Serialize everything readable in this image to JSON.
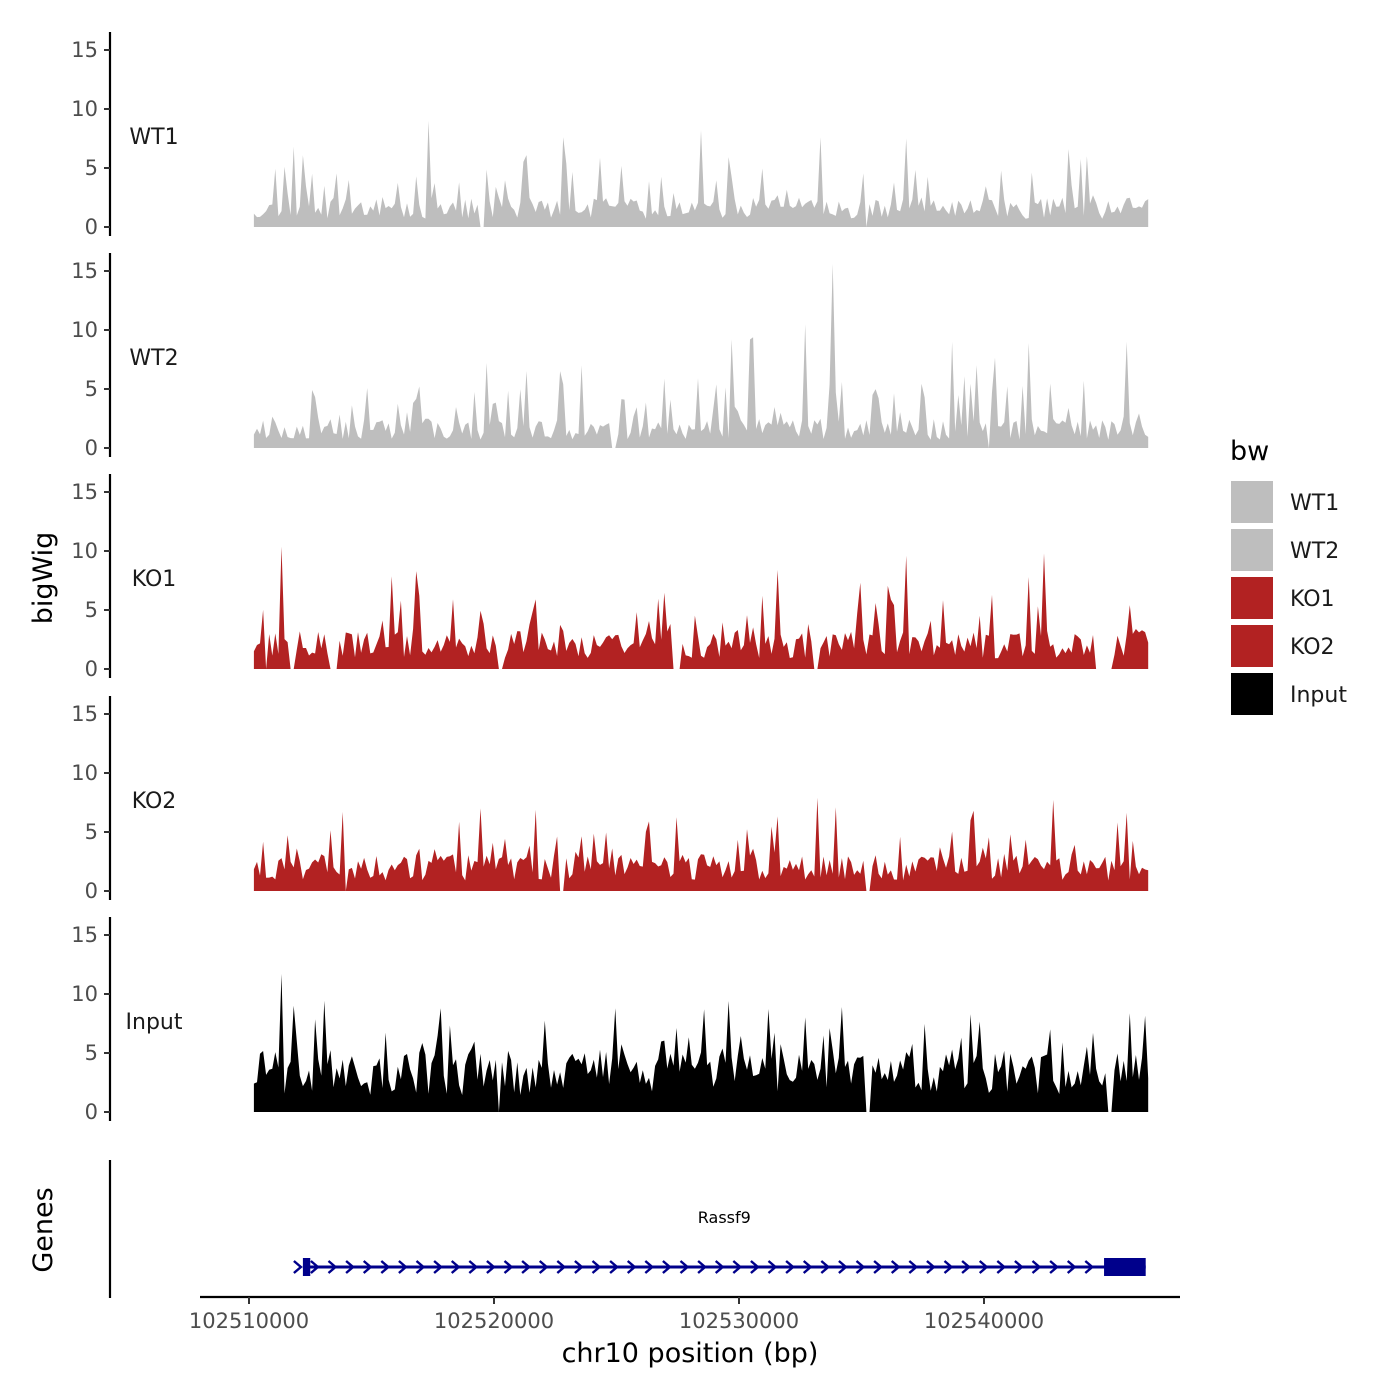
{
  "chart_data": {
    "type": "area",
    "title": "",
    "xlabel": "chr10 position (bp)",
    "ylabel": "bigWig",
    "genes_label": "Genes",
    "xlim": [
      102508000,
      102548000
    ],
    "ylim": [
      0,
      16
    ],
    "yticks": [
      0,
      5,
      10,
      15
    ],
    "xticks": [
      102510000,
      102520000,
      102530000,
      102540000
    ],
    "xtick_labels": [
      "102510000",
      "102520000",
      "102530000",
      "102540000"
    ],
    "legend": {
      "title": "bw",
      "position": "right",
      "entries": [
        {
          "label": "WT1",
          "color": "#bebebe"
        },
        {
          "label": "WT2",
          "color": "#bebebe"
        },
        {
          "label": "KO1",
          "color": "#b22222"
        },
        {
          "label": "KO2",
          "color": "#b22222"
        },
        {
          "label": "Input",
          "color": "#000000"
        }
      ]
    },
    "track_range": [
      102510200,
      102546700
    ],
    "series": [
      {
        "name": "WT1",
        "color": "#bebebe",
        "seed": 11,
        "base": 2.0,
        "peaks": [
          [
            102511800,
            6.8
          ],
          [
            102517300,
            9.0
          ],
          [
            102522800,
            7.6
          ],
          [
            102528400,
            8.2
          ],
          [
            102533300,
            7.6
          ],
          [
            102536800,
            7.5
          ],
          [
            102543500,
            6.6
          ]
        ],
        "gaps": [
          [
            102519400,
            102519600
          ],
          [
            102535100,
            102535300
          ]
        ]
      },
      {
        "name": "WT2",
        "color": "#bebebe",
        "seed": 23,
        "base": 2.0,
        "peaks": [
          [
            102523600,
            7.0
          ],
          [
            102529700,
            9.2
          ],
          [
            102532700,
            10.5
          ],
          [
            102533800,
            15.6
          ],
          [
            102538700,
            9.0
          ],
          [
            102541800,
            8.9
          ],
          [
            102545800,
            9.0
          ]
        ],
        "gaps": [
          [
            102524800,
            102525000
          ],
          [
            102540100,
            102540300
          ]
        ]
      },
      {
        "name": "KO1",
        "color": "#b22222",
        "seed": 37,
        "base": 2.6,
        "peaks": [
          [
            102516200,
            5.8
          ],
          [
            102516800,
            8.3
          ],
          [
            102531600,
            8.4
          ],
          [
            102536800,
            9.6
          ],
          [
            102541800,
            7.8
          ],
          [
            102542400,
            9.8
          ]
        ],
        "gaps": [
          [
            102510600,
            102510700
          ],
          [
            102511600,
            102511900
          ],
          [
            102513300,
            102513600
          ],
          [
            102520100,
            102520400
          ],
          [
            102527300,
            102527600
          ],
          [
            102533000,
            102533200
          ],
          [
            102544500,
            102545300
          ]
        ]
      },
      {
        "name": "KO2",
        "color": "#b22222",
        "seed": 53,
        "base": 2.5,
        "peaks": [
          [
            102513800,
            6.7
          ],
          [
            102519400,
            7.0
          ],
          [
            102533200,
            7.9
          ],
          [
            102534000,
            7.1
          ],
          [
            102539600,
            6.8
          ]
        ],
        "gaps": [
          [
            102513900,
            102514000
          ],
          [
            102522700,
            102522900
          ],
          [
            102535100,
            102535400
          ]
        ]
      },
      {
        "name": "Input",
        "color": "#000000",
        "seed": 71,
        "base": 4.1,
        "peaks": [
          [
            102511300,
            11.7
          ],
          [
            102511800,
            9.0
          ],
          [
            102517800,
            8.8
          ],
          [
            102524900,
            8.8
          ],
          [
            102528600,
            8.7
          ],
          [
            102534200,
            8.9
          ],
          [
            102539400,
            8.3
          ]
        ],
        "gaps": [
          [
            102520100,
            102520300
          ],
          [
            102535100,
            102535400
          ],
          [
            102545000,
            102545200
          ]
        ]
      }
    ],
    "gene": {
      "name": "Rassf9",
      "start": 102512200,
      "end": 102546600,
      "strand": "+",
      "color": "#00008b",
      "exons": [
        [
          102512200,
          102512500
        ],
        [
          102544900,
          102546600
        ]
      ]
    }
  }
}
